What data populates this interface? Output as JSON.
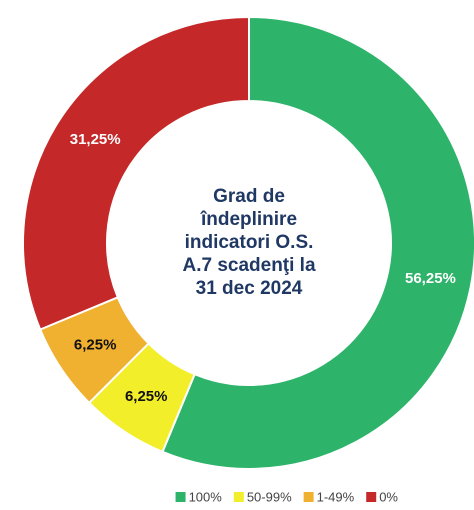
{
  "chart_data": {
    "type": "donut",
    "title": [
      "Grad de",
      "îndeplinire",
      "indicatori O.S.",
      "A.7 scadenţi la",
      "31 dec 2024"
    ],
    "categories": [
      "100%",
      "50-99%",
      "1-49%",
      "0%"
    ],
    "values": [
      56.25,
      6.25,
      6.25,
      31.25
    ],
    "value_labels": [
      "56,25%",
      "6,25%",
      "6,25%",
      "31,25%"
    ],
    "colors": [
      "#2db36a",
      "#f2ee2a",
      "#f0b030",
      "#c42828"
    ],
    "legend": "bottom"
  }
}
